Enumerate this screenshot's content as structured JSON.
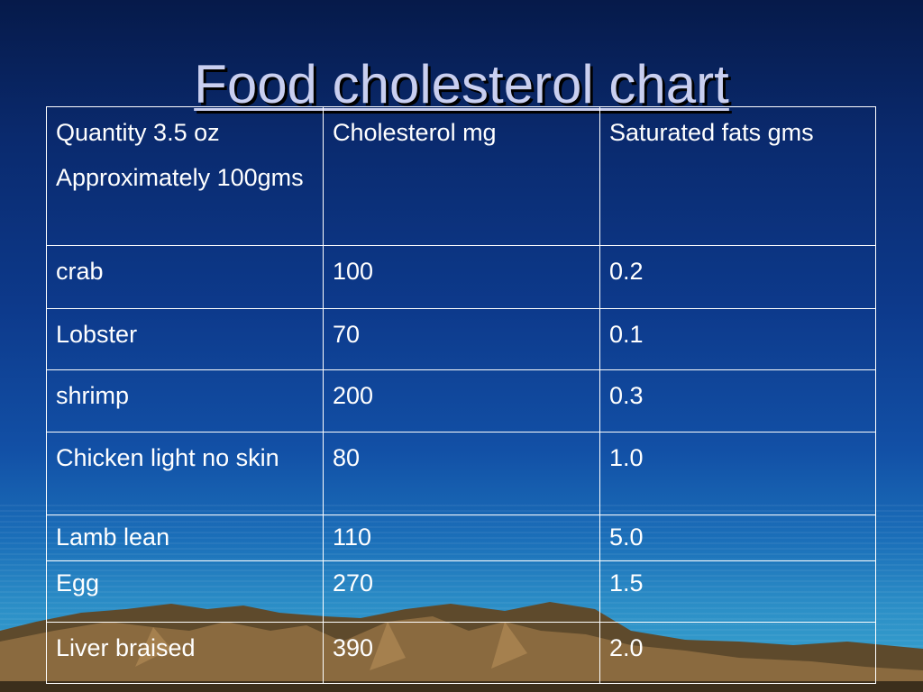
{
  "title": "Food cholesterol chart",
  "table": {
    "header": {
      "quantity_line1": "Quantity 3.5 oz",
      "quantity_line2": "Approximately 100gms",
      "cholesterol": "Cholesterol mg",
      "saturated": "Saturated fats gms"
    },
    "rows": [
      {
        "food": "crab",
        "cholesterol": "100",
        "saturated": "0.2"
      },
      {
        "food": "Lobster",
        "cholesterol": "70",
        "saturated": "0.1"
      },
      {
        "food": "shrimp",
        "cholesterol": "200",
        "saturated": "0.3"
      },
      {
        "food": "Chicken light no skin",
        "cholesterol": "80",
        "saturated": "1.0"
      },
      {
        "food": "Lamb lean",
        "cholesterol": "110",
        "saturated": "5.0"
      },
      {
        "food": "Egg",
        "cholesterol": "270",
        "saturated": "1.5"
      },
      {
        "food": "Liver braised",
        "cholesterol": "390",
        "saturated": "2.0"
      }
    ]
  },
  "colors": {
    "background_top": "#061a4a",
    "background_bottom": "#3aa7cf",
    "text": "#ffffff",
    "title": "#c9cff0",
    "mountains": "#8a6a3f"
  }
}
